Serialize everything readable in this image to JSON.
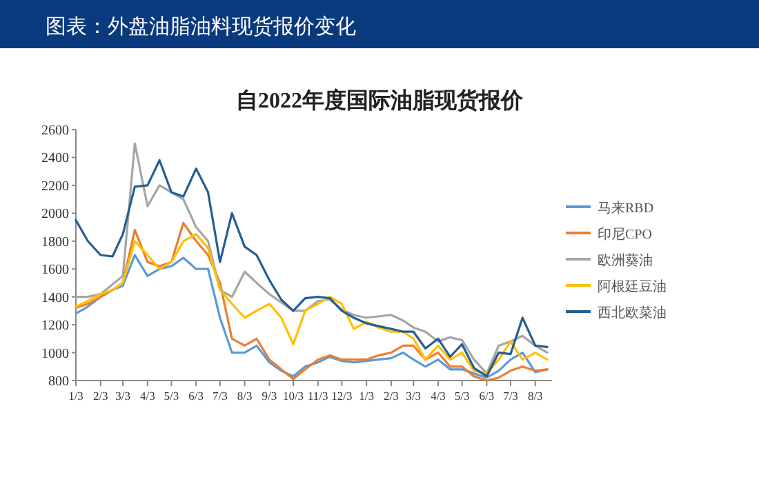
{
  "chart_data": {
    "type": "line",
    "title": "图表：外盘油脂油料现货报价变化",
    "subtitle": "自2022年度国际油脂现货报价",
    "x": [
      "2022-01-03",
      "2022-01-18",
      "2022-02-03",
      "2022-02-18",
      "2022-03-03",
      "2022-03-18",
      "2022-04-03",
      "2022-04-18",
      "2022-05-03",
      "2022-05-18",
      "2022-06-03",
      "2022-06-18",
      "2022-07-03",
      "2022-07-18",
      "2022-08-03",
      "2022-08-18",
      "2022-09-03",
      "2022-09-18",
      "2022-10-03",
      "2022-10-18",
      "2022-11-03",
      "2022-11-18",
      "2022-12-03",
      "2022-12-18",
      "2023-01-03",
      "2023-01-18",
      "2023-02-03",
      "2023-02-18",
      "2023-03-03",
      "2023-03-18",
      "2023-04-03",
      "2023-04-18",
      "2023-05-03",
      "2023-05-18",
      "2023-06-03",
      "2023-06-18",
      "2023-07-03",
      "2023-07-18",
      "2023-08-03",
      "2023-08-18"
    ],
    "series": [
      {
        "name": "马来RBD",
        "color": "#5b9bd5",
        "values": [
          1280,
          1330,
          1400,
          1450,
          1480,
          1700,
          1550,
          1600,
          1620,
          1680,
          1600,
          1600,
          1250,
          1000,
          1000,
          1050,
          930,
          870,
          830,
          900,
          930,
          970,
          940,
          930,
          940,
          950,
          960,
          1000,
          950,
          900,
          950,
          880,
          880,
          850,
          820,
          870,
          950,
          1000,
          860,
          880
        ]
      },
      {
        "name": "印尼CPO",
        "color": "#ed7d31",
        "values": [
          1320,
          1350,
          1400,
          1450,
          1500,
          1880,
          1650,
          1620,
          1650,
          1930,
          1800,
          1700,
          1500,
          1100,
          1050,
          1100,
          950,
          880,
          810,
          880,
          950,
          980,
          950,
          950,
          950,
          980,
          1000,
          1050,
          1050,
          950,
          1000,
          900,
          900,
          830,
          800,
          820,
          870,
          900,
          870,
          880
        ]
      },
      {
        "name": "欧洲葵油",
        "color": "#a5a5a5",
        "values": [
          1400,
          1400,
          1420,
          1490,
          1550,
          2500,
          2050,
          2200,
          2150,
          2100,
          1900,
          1800,
          1450,
          1400,
          1580,
          1500,
          1420,
          1360,
          1300,
          1300,
          1370,
          1380,
          1310,
          1270,
          1250,
          1260,
          1270,
          1230,
          1180,
          1150,
          1080,
          1110,
          1090,
          950,
          850,
          1050,
          1080,
          1120,
          1050,
          1000
        ]
      },
      {
        "name": "阿根廷豆油",
        "color": "#ffc000",
        "values": [
          1330,
          1370,
          1420,
          1450,
          1500,
          1800,
          1700,
          1600,
          1650,
          1800,
          1850,
          1750,
          1450,
          1350,
          1250,
          1300,
          1350,
          1250,
          1060,
          1300,
          1350,
          1400,
          1350,
          1170,
          1220,
          1180,
          1150,
          1150,
          1100,
          950,
          1050,
          950,
          1000,
          870,
          850,
          950,
          1080,
          950,
          1000,
          950
        ]
      },
      {
        "name": "西北欧菜油",
        "color": "#255e91",
        "values": [
          1950,
          1800,
          1700,
          1690,
          1850,
          2190,
          2200,
          2380,
          2150,
          2120,
          2320,
          2150,
          1650,
          2000,
          1760,
          1700,
          1520,
          1380,
          1300,
          1390,
          1400,
          1390,
          1300,
          1250,
          1210,
          1190,
          1170,
          1150,
          1150,
          1030,
          1100,
          970,
          1060,
          890,
          830,
          1000,
          990,
          1250,
          1050,
          1040
        ]
      }
    ],
    "xlim": [
      "2022-01-03",
      "2023-08-24"
    ],
    "xticks": [
      {
        "value": "2022-01-03",
        "label": "1/3"
      },
      {
        "value": "2022-02-03",
        "label": "2/3"
      },
      {
        "value": "2022-03-03",
        "label": "3/3"
      },
      {
        "value": "2022-04-03",
        "label": "4/3"
      },
      {
        "value": "2022-05-03",
        "label": "5/3"
      },
      {
        "value": "2022-06-03",
        "label": "6/3"
      },
      {
        "value": "2022-07-03",
        "label": "7/3"
      },
      {
        "value": "2022-08-03",
        "label": "8/3"
      },
      {
        "value": "2022-09-03",
        "label": "9/3"
      },
      {
        "value": "2022-10-03",
        "label": "10/3"
      },
      {
        "value": "2022-11-03",
        "label": "11/3"
      },
      {
        "value": "2022-12-03",
        "label": "12/3"
      },
      {
        "value": "2023-01-03",
        "label": "1/3"
      },
      {
        "value": "2023-02-03",
        "label": "2/3"
      },
      {
        "value": "2023-03-03",
        "label": "3/3"
      },
      {
        "value": "2023-04-03",
        "label": "4/3"
      },
      {
        "value": "2023-05-03",
        "label": "5/3"
      },
      {
        "value": "2023-06-03",
        "label": "6/3"
      },
      {
        "value": "2023-07-03",
        "label": "7/3"
      },
      {
        "value": "2023-08-03",
        "label": "8/3"
      }
    ],
    "ylim": [
      800,
      2600
    ],
    "yticks": [
      800,
      1000,
      1200,
      1400,
      1600,
      1800,
      2000,
      2200,
      2400,
      2600
    ],
    "grid": false,
    "legend": "right",
    "marker": "none",
    "line_style": "solid"
  }
}
